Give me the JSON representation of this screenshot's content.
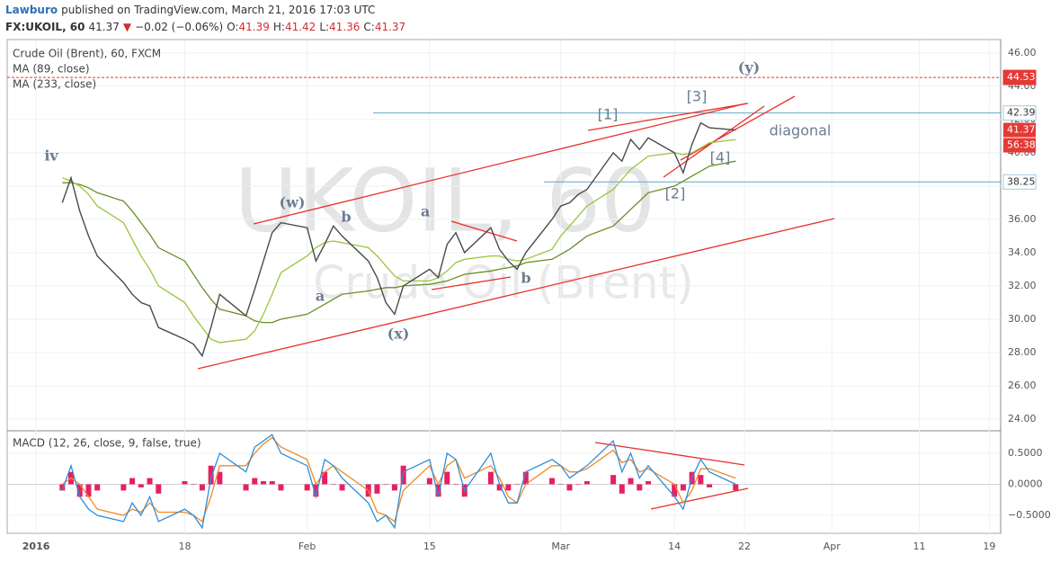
{
  "header": {
    "author": "Lawburo",
    "published": "published on TradingView.com, March 21, 2016 17:03 UTC",
    "symbol": "FX:UKOIL, 60",
    "last": "41.37",
    "arrow": "▼",
    "change": "−0.02 (−0.06%)",
    "ohlc": [
      {
        "label": "O:",
        "value": "41.39"
      },
      {
        "label": "H:",
        "value": "41.42"
      },
      {
        "label": "L:",
        "value": "41.36"
      },
      {
        "label": "C:",
        "value": "41.37"
      }
    ]
  },
  "watermark": {
    "symbol": "UKOIL, 60",
    "name": "Crude Oil (Brent)"
  },
  "annotations": [
    "iv",
    "(w)",
    "b",
    "a",
    "a",
    "(x)",
    "b",
    "[1]",
    "[2]",
    "[3]",
    "[4]",
    "(y)",
    "diagonal"
  ],
  "chart_data": [
    {
      "type": "line",
      "x": [
        4,
        5,
        6,
        7,
        8,
        11,
        12,
        13,
        14,
        15,
        18,
        19,
        20,
        21,
        22,
        25,
        26,
        27,
        28,
        29,
        32,
        33,
        34,
        35,
        36,
        39,
        40,
        41,
        42,
        43,
        46,
        47,
        48,
        49,
        50,
        53,
        54,
        55,
        56,
        57,
        60,
        61,
        62,
        63,
        64,
        67,
        68,
        69,
        70,
        71,
        74,
        75,
        76,
        77,
        78,
        81
      ],
      "xlim": [
        -2.3,
        111.3
      ],
      "xticks": [
        {
          "value": 1,
          "label": "2016"
        },
        18,
        {
          "value": 32,
          "label": "Feb"
        },
        {
          "value": 46,
          "label": "15"
        },
        {
          "value": 61,
          "label": "Mar"
        },
        {
          "value": 74,
          "label": "14"
        },
        {
          "value": 82,
          "label": "22"
        },
        {
          "value": 92,
          "label": "Apr"
        },
        {
          "value": 102,
          "label": "11"
        },
        {
          "value": 110,
          "label": "19"
        }
      ],
      "ylim": [
        23.35,
        46.75
      ],
      "yticks": [
        {
          "value": 24,
          "label": "24.00"
        },
        {
          "value": 26,
          "label": "26.00"
        },
        {
          "value": 28,
          "label": "28.00"
        },
        {
          "value": 30,
          "label": "30.00"
        },
        {
          "value": 32,
          "label": "32.00"
        },
        {
          "value": 34,
          "label": "34.00"
        },
        {
          "value": 36,
          "label": "36.00"
        },
        {
          "value": 38,
          "label": "38.00"
        },
        {
          "value": 40,
          "label": "40.00"
        },
        {
          "value": 42,
          "label": "42.00"
        },
        {
          "value": 44,
          "label": "44.00"
        },
        {
          "value": 46,
          "label": "46.00"
        }
      ],
      "grid": true,
      "series": [
        {
          "name": "Crude Oil (Brent), 60, FXCM",
          "color": "#4a4a4a",
          "values": [
            37.0,
            38.5,
            36.5,
            35.0,
            33.8,
            32.2,
            31.5,
            31.0,
            30.8,
            29.5,
            28.8,
            28.5,
            27.8,
            29.5,
            31.5,
            30.2,
            31.8,
            33.5,
            35.2,
            35.8,
            35.5,
            33.5,
            34.5,
            35.6,
            35.0,
            33.5,
            32.5,
            31.0,
            30.3,
            32.0,
            33.0,
            32.5,
            34.5,
            35.2,
            34.0,
            35.5,
            34.2,
            33.5,
            33.0,
            34.0,
            36.0,
            36.8,
            37.0,
            37.5,
            37.8,
            40.0,
            39.5,
            40.8,
            40.2,
            40.9,
            40.0,
            38.8,
            40.5,
            41.8,
            41.5,
            41.37
          ]
        },
        {
          "name": "MA (89, close)",
          "color": "#9bc53d",
          "values": [
            38.5,
            38.3,
            38.0,
            37.5,
            36.8,
            35.8,
            34.8,
            33.8,
            33.0,
            32.0,
            31.0,
            30.2,
            29.5,
            28.8,
            28.6,
            28.8,
            29.3,
            30.3,
            31.5,
            32.8,
            33.8,
            34.3,
            34.6,
            34.7,
            34.6,
            34.3,
            33.8,
            33.2,
            32.6,
            32.3,
            32.3,
            32.5,
            32.9,
            33.4,
            33.6,
            33.8,
            33.8,
            33.6,
            33.5,
            33.6,
            34.2,
            35.0,
            35.6,
            36.2,
            36.8,
            37.8,
            38.4,
            39.0,
            39.4,
            39.8,
            40.0,
            39.9,
            40.0,
            40.3,
            40.6,
            40.8
          ]
        },
        {
          "name": "MA (233, close)",
          "color": "#6b8e23",
          "values": [
            38.2,
            38.2,
            38.1,
            37.9,
            37.6,
            37.1,
            36.5,
            35.8,
            35.1,
            34.3,
            33.5,
            32.7,
            31.9,
            31.2,
            30.6,
            30.2,
            29.9,
            29.8,
            29.8,
            30.0,
            30.3,
            30.6,
            30.9,
            31.2,
            31.5,
            31.7,
            31.8,
            31.9,
            31.9,
            32.0,
            32.1,
            32.2,
            32.3,
            32.5,
            32.7,
            32.9,
            33.0,
            33.1,
            33.2,
            33.4,
            33.6,
            33.9,
            34.2,
            34.6,
            35.0,
            35.6,
            36.1,
            36.6,
            37.1,
            37.6,
            38.0,
            38.3,
            38.6,
            38.9,
            39.2,
            39.5
          ]
        }
      ],
      "price_lines": [
        {
          "value": 44.53,
          "color": "#e53935",
          "style": "dashed"
        },
        {
          "value": 42.39,
          "color": "#5fa8c9",
          "style": "solid"
        },
        {
          "value": 38.25,
          "color": "#5fa8c9",
          "style": "solid"
        }
      ],
      "last_price": 41.37,
      "last_color": "#e53935",
      "countdown": "56:38"
    },
    {
      "type": "line",
      "title": "MACD (12, 26, close, 9, false, true)",
      "ylim": [
        -0.79,
        0.833
      ],
      "yticks": [
        {
          "value": 0.5,
          "label": "0.5000"
        },
        {
          "value": 0,
          "label": "0.0000"
        },
        {
          "value": -0.5,
          "label": "−0.5000"
        }
      ],
      "series": [
        {
          "color": "#2f8fd8",
          "values": [
            -0.1,
            0.3,
            -0.2,
            -0.4,
            -0.5,
            -0.6,
            -0.3,
            -0.5,
            -0.2,
            -0.6,
            -0.4,
            -0.5,
            -0.7,
            0.1,
            0.5,
            0.2,
            0.6,
            0.7,
            0.8,
            0.5,
            0.3,
            -0.2,
            0.4,
            0.3,
            0.1,
            -0.3,
            -0.6,
            -0.5,
            -0.7,
            0.2,
            0.4,
            -0.2,
            0.5,
            0.4,
            -0.1,
            0.5,
            0.0,
            -0.3,
            -0.3,
            0.2,
            0.4,
            0.3,
            0.1,
            0.2,
            0.3,
            0.7,
            0.2,
            0.5,
            0.1,
            0.3,
            -0.2,
            -0.4,
            0.1,
            0.4,
            0.2,
            0.0
          ]
        },
        {
          "color": "#f08a24",
          "values": [
            0.0,
            0.1,
            0.0,
            -0.2,
            -0.4,
            -0.5,
            -0.4,
            -0.45,
            -0.3,
            -0.45,
            -0.45,
            -0.5,
            -0.6,
            -0.2,
            0.3,
            0.3,
            0.5,
            0.65,
            0.75,
            0.6,
            0.4,
            0.0,
            0.2,
            0.3,
            0.2,
            -0.1,
            -0.45,
            -0.5,
            -0.6,
            -0.1,
            0.3,
            0.0,
            0.3,
            0.4,
            0.1,
            0.3,
            0.1,
            -0.2,
            -0.3,
            0.0,
            0.3,
            0.3,
            0.2,
            0.2,
            0.25,
            0.55,
            0.35,
            0.4,
            0.2,
            0.25,
            0.0,
            -0.3,
            -0.1,
            0.25,
            0.25,
            0.1
          ]
        }
      ],
      "bars": {
        "color": "#e91e63",
        "values": [
          -0.1,
          0.2,
          -0.2,
          -0.2,
          -0.1,
          -0.1,
          0.1,
          -0.05,
          0.1,
          -0.15,
          0.05,
          0,
          -0.1,
          0.3,
          0.2,
          -0.1,
          0.1,
          0.05,
          0.05,
          -0.1,
          -0.1,
          -0.2,
          0.2,
          0,
          -0.1,
          -0.2,
          -0.15,
          0,
          -0.1,
          0.3,
          0.1,
          -0.2,
          0.2,
          0,
          -0.2,
          0.2,
          -0.1,
          -0.1,
          0,
          0.2,
          0.1,
          0,
          -0.1,
          0,
          0.05,
          0.15,
          -0.15,
          0.1,
          -0.1,
          0.05,
          -0.2,
          -0.1,
          0.2,
          0.15,
          -0.05,
          -0.1
        ]
      }
    }
  ]
}
